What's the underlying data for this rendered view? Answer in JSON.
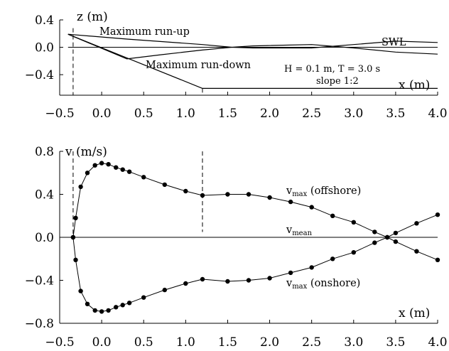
{
  "chart_data": [
    {
      "type": "line",
      "xlim": [
        -0.5,
        4.0
      ],
      "ylim": [
        -0.7,
        0.4
      ],
      "yticks": [
        0.4,
        0.0,
        -0.4
      ],
      "xticks": [
        -0.5,
        0.0,
        0.5,
        1.0,
        1.5,
        2.0,
        2.5,
        3.0,
        3.5,
        4.0
      ],
      "xtick_labels": [
        "−0.5",
        "0.0",
        "0.5",
        "1.0",
        "1.5",
        "2.0",
        "2.5",
        "3.0",
        "3.5",
        "4.0"
      ],
      "ytick_labels": [
        "0.4",
        "0.0",
        "−0.4"
      ],
      "ylabel": "z (m)",
      "xlabel": "x (m)",
      "annotations": [
        "Maximum run-up",
        "Maximum run-down",
        "SWL",
        "H = 0.1 m, T = 3.0 s",
        "slope 1:2"
      ],
      "series": [
        {
          "x": [
            -0.4,
            0.3,
            1.2,
            1.55,
            1.8,
            2.5,
            3.0,
            3.5,
            4.0
          ],
          "y": [
            0.19,
            0.12,
            0.04,
            0.0,
            -0.01,
            -0.01,
            0.04,
            0.09,
            0.07
          ]
        },
        {
          "x": [
            -0.4,
            0.3,
            0.7,
            1.2,
            1.55,
            1.8,
            2.5,
            3.0,
            3.5,
            4.0
          ],
          "y": [
            0.19,
            -0.17,
            -0.11,
            -0.04,
            0.0,
            0.02,
            0.04,
            -0.01,
            -0.07,
            -0.1
          ]
        },
        {
          "x": [
            -0.4,
            1.2
          ],
          "y": [
            0.19,
            -0.6
          ]
        },
        {
          "x": [
            1.2,
            4.0
          ],
          "y": [
            -0.6,
            -0.6
          ]
        },
        {
          "x": [
            -0.4,
            4.0
          ],
          "y": [
            0.0,
            0.0
          ]
        }
      ],
      "vlines": [
        {
          "x": -0.34,
          "ymin": -0.7,
          "ymax": 0.28
        },
        {
          "x": 1.2,
          "ymin": -0.7,
          "ymax": -0.6
        }
      ]
    },
    {
      "type": "line",
      "xlim": [
        -0.5,
        4.0
      ],
      "ylim": [
        -0.8,
        0.8
      ],
      "yticks": [
        0.8,
        0.4,
        0.0,
        -0.4,
        -0.8
      ],
      "ytick_labels": [
        "0.8",
        "0.4",
        "0.0",
        "−0.4",
        "−0.8"
      ],
      "xticks": [
        -0.5,
        0.0,
        0.5,
        1.0,
        1.5,
        2.0,
        2.5,
        3.0,
        3.5,
        4.0
      ],
      "xtick_labels": [
        "−0.5",
        "0.0",
        "0.5",
        "1.0",
        "1.5",
        "2.0",
        "2.5",
        "3.0",
        "3.5",
        "4.0"
      ],
      "ylabel": "v (m/s)",
      "xlabel": "x (m)",
      "x": [
        -0.34,
        -0.31,
        -0.25,
        -0.17,
        -0.08,
        0.0,
        0.08,
        0.17,
        0.25,
        0.33,
        0.5,
        0.75,
        1.0,
        1.2,
        1.5,
        1.75,
        2.0,
        2.25,
        2.5,
        2.75,
        3.0,
        3.25,
        3.4,
        3.5,
        3.75,
        4.0
      ],
      "series": [
        {
          "name": "v_max (offshore)",
          "label_main": "v",
          "label_sub": "max",
          "label_suffix": " (offshore)",
          "values": [
            0.0,
            0.18,
            0.47,
            0.6,
            0.67,
            0.69,
            0.68,
            0.65,
            0.63,
            0.61,
            0.56,
            0.49,
            0.43,
            0.39,
            0.4,
            0.4,
            0.37,
            0.33,
            0.28,
            0.2,
            0.14,
            0.05,
            0.0,
            -0.04,
            -0.13,
            -0.21
          ]
        },
        {
          "name": "v_max (onshore)",
          "label_main": "v",
          "label_sub": "max",
          "label_suffix": " (onshore)",
          "values": [
            0.0,
            -0.21,
            -0.5,
            -0.62,
            -0.68,
            -0.69,
            -0.68,
            -0.65,
            -0.63,
            -0.61,
            -0.56,
            -0.49,
            -0.43,
            -0.39,
            -0.41,
            -0.4,
            -0.38,
            -0.33,
            -0.28,
            -0.2,
            -0.14,
            -0.05,
            0.0,
            0.04,
            0.13,
            0.21
          ]
        },
        {
          "name": "v_mean",
          "label_main": "v",
          "label_sub": "mean",
          "label_suffix": "",
          "values_const": 0.0
        }
      ],
      "vlines": [
        {
          "x": -0.34,
          "ymin": 0.0,
          "ymax": 0.8
        },
        {
          "x": 1.2,
          "ymin": 0.05,
          "ymax": 0.8
        }
      ]
    }
  ]
}
